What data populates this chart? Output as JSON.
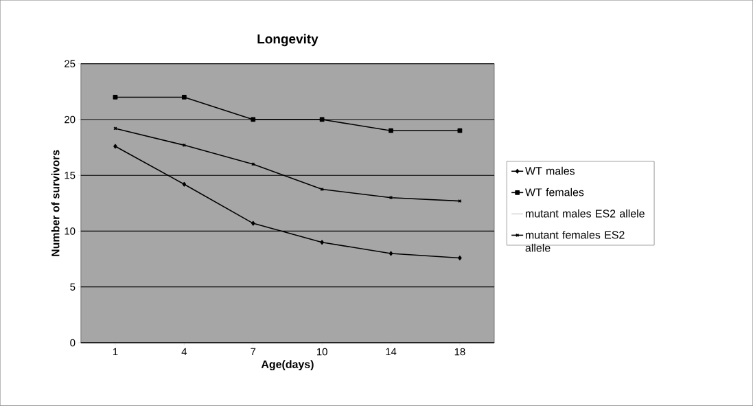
{
  "chart_data": {
    "type": "line",
    "title": "Longevity",
    "xlabel": "Age(days)",
    "ylabel": "Number of survivors",
    "categories": [
      "1",
      "4",
      "7",
      "10",
      "14",
      "18"
    ],
    "ylim": [
      0,
      25
    ],
    "yticks": [
      0,
      5,
      10,
      15,
      20,
      25
    ],
    "grid": "y",
    "legend": "right",
    "series": [
      {
        "name": "WT males",
        "color": "#000000",
        "marker": "diamond",
        "values": [
          17.6,
          14.2,
          10.7,
          9.0,
          8.0,
          7.6
        ]
      },
      {
        "name": "WT females",
        "color": "#000000",
        "marker": "square",
        "values": [
          22,
          22,
          20,
          20,
          19,
          19
        ]
      },
      {
        "name": "mutant males ES2 allele",
        "color": "#d8d8d8",
        "marker": "none",
        "values": [
          null,
          null,
          null,
          null,
          null,
          null
        ]
      },
      {
        "name": "mutant females ES2 allele",
        "color": "#000000",
        "marker": "cross",
        "values": [
          19.2,
          17.7,
          16.0,
          13.75,
          13.0,
          12.7
        ]
      }
    ]
  }
}
